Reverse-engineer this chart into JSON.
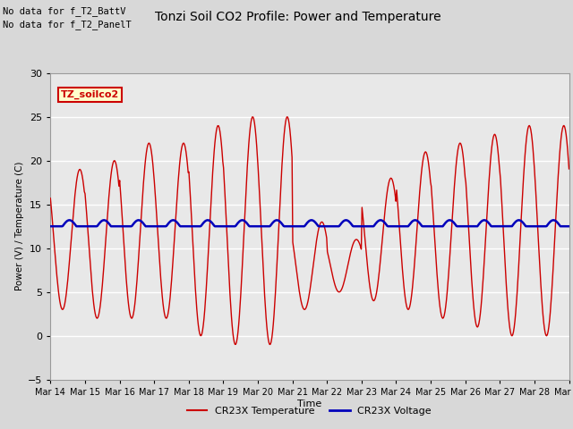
{
  "title": "Tonzi Soil CO2 Profile: Power and Temperature",
  "no_data_text1": "No data for f_T2_BattV",
  "no_data_text2": "No data for f_T2_PanelT",
  "ylabel": "Power (V) / Temperature (C)",
  "xlabel": "Time",
  "ylim": [
    -5,
    30
  ],
  "yticks": [
    -5,
    0,
    5,
    10,
    15,
    20,
    25,
    30
  ],
  "xtick_labels": [
    "Mar 14",
    "Mar 15",
    "Mar 16",
    "Mar 17",
    "Mar 18",
    "Mar 19",
    "Mar 20",
    "Mar 21",
    "Mar 22",
    "Mar 23",
    "Mar 24",
    "Mar 25",
    "Mar 26",
    "Mar 27",
    "Mar 28",
    "Mar 29"
  ],
  "legend_label_red": "CR23X Temperature",
  "legend_label_blue": "CR23X Voltage",
  "fig_bg_color": "#d8d8d8",
  "plot_bg_color": "#e8e8e8",
  "label_box_text": "TZ_soilco2",
  "label_box_facecolor": "#ffffcc",
  "label_box_edgecolor": "#cc0000",
  "label_box_textcolor": "#cc0000",
  "grid_color": "#ffffff",
  "red_color": "#cc0000",
  "blue_color": "#0000bb",
  "n_days": 15,
  "pts_per_day": 48
}
